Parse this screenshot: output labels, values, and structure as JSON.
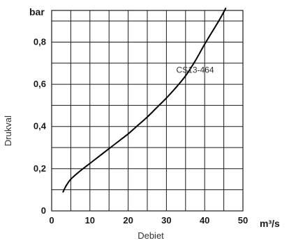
{
  "chart_data": {
    "type": "line",
    "xlabel": "Debiet",
    "ylabel": "Drukval",
    "x_unit": "m³/s",
    "y_unit": "bar",
    "xlim": [
      0,
      50
    ],
    "ylim": [
      0,
      0.95
    ],
    "x_ticks": [
      "0",
      "10",
      "20",
      "30",
      "40",
      "50"
    ],
    "y_ticks": [
      "0",
      "0,2",
      "0,4",
      "0,6",
      "0,8"
    ],
    "grid": true,
    "series": [
      {
        "name": "CS13-464",
        "x": [
          3,
          3.5,
          4,
          5,
          7.5,
          10,
          12.5,
          15,
          17.5,
          20,
          22.5,
          25,
          27.5,
          30,
          32.5,
          35,
          37.5,
          40,
          42.5,
          44,
          45.5
        ],
        "y": [
          0.09,
          0.11,
          0.125,
          0.15,
          0.19,
          0.225,
          0.26,
          0.295,
          0.33,
          0.365,
          0.405,
          0.445,
          0.49,
          0.535,
          0.585,
          0.64,
          0.71,
          0.79,
          0.865,
          0.91,
          0.96
        ]
      }
    ]
  }
}
